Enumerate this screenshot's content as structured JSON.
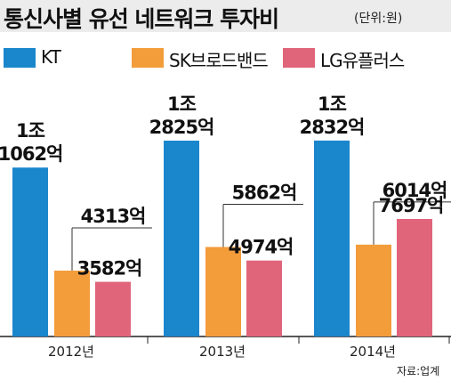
{
  "header": {
    "title": "통신사별 유선 네트워크 투자비",
    "unit": "(단위:원)"
  },
  "source": "자료:업계",
  "colors": {
    "KT": "#1a86cc",
    "SK": "#f39c3a",
    "LG": "#e0647a",
    "title_bg": "#ececec"
  },
  "chart_data": {
    "type": "bar",
    "title": "통신사별 유선 네트워크 투자비",
    "unit_label": "(단위:원)",
    "categories": [
      "2012년",
      "2013년",
      "2014년"
    ],
    "series": [
      {
        "name": "KT",
        "values": [
          11062,
          12825,
          12832
        ],
        "labels": [
          [
            "1조",
            "1062억"
          ],
          [
            "1조",
            "2825억"
          ],
          [
            "1조",
            "2832억"
          ]
        ]
      },
      {
        "name": "SK브로드밴드",
        "values": [
          4313,
          5862,
          6014
        ],
        "labels": [
          [
            "4313억"
          ],
          [
            "5862억"
          ],
          [
            "6014억"
          ]
        ]
      },
      {
        "name": "LG유플러스",
        "values": [
          3582,
          4974,
          7697
        ],
        "labels": [
          [
            "3582억"
          ],
          [
            "4974억"
          ],
          [
            "7697억"
          ]
        ]
      }
    ],
    "ylim": [
      0,
      16000
    ],
    "legend_position": "top",
    "grid": false
  }
}
